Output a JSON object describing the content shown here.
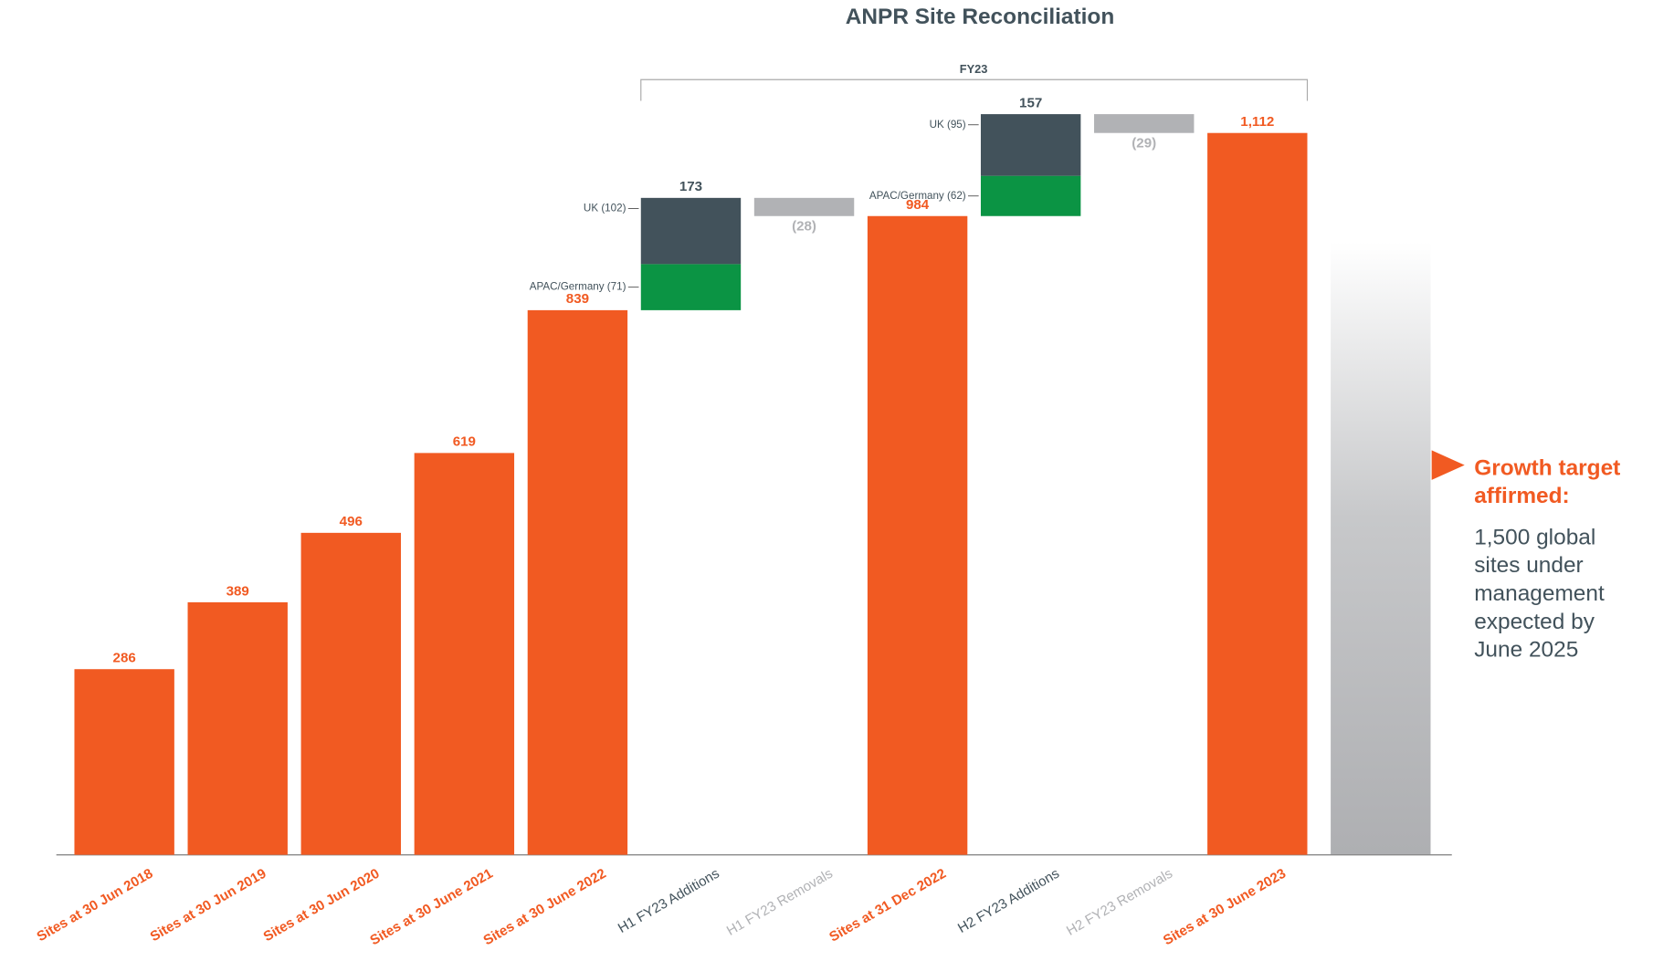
{
  "chart_data": {
    "type": "waterfall",
    "title": "ANPR Site Reconciliation",
    "bracket_label": "FY23",
    "ylim": [
      0,
      1150
    ],
    "bars": [
      {
        "label": "Sites at 30 Jun 2018",
        "measure": "total",
        "value": 286,
        "color": "#f15a22"
      },
      {
        "label": "Sites at 30 Jun 2019",
        "measure": "total",
        "value": 389,
        "color": "#f15a22"
      },
      {
        "label": "Sites at 30 Jun 2020",
        "measure": "total",
        "value": 496,
        "color": "#f15a22"
      },
      {
        "label": "Sites at 30 June 2021",
        "measure": "total",
        "value": 619,
        "color": "#f15a22"
      },
      {
        "label": "Sites at 30 June 2022",
        "measure": "total",
        "value": 839,
        "color": "#f15a22"
      },
      {
        "label": "H1 FY23 Additions",
        "measure": "relative",
        "value": 173,
        "parts": [
          {
            "name": "APAC/Germany (71)",
            "value": 71,
            "color": "#0b9444"
          },
          {
            "name": "UK (102)",
            "value": 102,
            "color": "#42525b"
          }
        ]
      },
      {
        "label": "H1 FY23 Removals",
        "measure": "relative",
        "value": -28,
        "value_label": "(28)",
        "color": "#b1b2b5"
      },
      {
        "label": "Sites at 31 Dec 2022",
        "measure": "total",
        "value": 984,
        "color": "#f15a22"
      },
      {
        "label": "H2 FY23 Additions",
        "measure": "relative",
        "value": 157,
        "parts": [
          {
            "name": "APAC/Germany (62)",
            "value": 62,
            "color": "#0b9444"
          },
          {
            "name": "UK (95)",
            "value": 95,
            "color": "#42525b"
          }
        ]
      },
      {
        "label": "H2 FY23 Removals",
        "measure": "relative",
        "value": -29,
        "value_label": "(29)",
        "color": "#b1b2b5"
      },
      {
        "label": "Sites at 30 June 2023",
        "measure": "total",
        "value": 1112,
        "value_label": "1,112",
        "color": "#f15a22"
      }
    ],
    "annotation": {
      "heading": [
        "Growth target",
        "affirmed:"
      ],
      "body": [
        "1,500 global",
        "sites under",
        "management",
        "expected by",
        "June 2025"
      ]
    }
  }
}
